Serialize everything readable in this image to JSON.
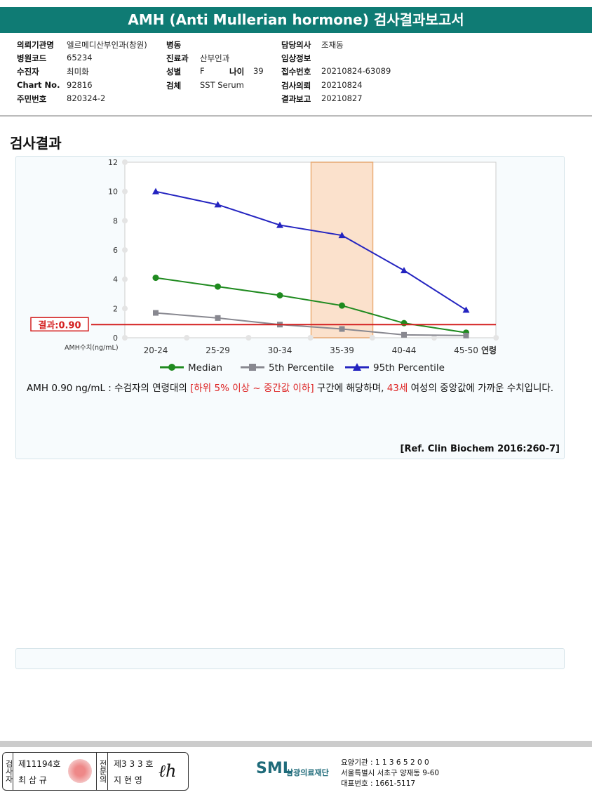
{
  "title": "AMH (Anti Mullerian hormone) 검사결과보고서",
  "info": [
    {
      "k": "의뢰기관명",
      "v": "엘르메디산부인과(창원)"
    },
    {
      "k": "병원코드",
      "v": "65234"
    },
    {
      "k": "수진자",
      "v": "최미화"
    },
    {
      "k": "Chart No.",
      "v": "92816"
    },
    {
      "k": "주민번호",
      "v": "820324-2"
    },
    {
      "k": "병동",
      "v": ""
    },
    {
      "k": "진료과",
      "v": "산부인과"
    },
    {
      "k": "성별",
      "v": "F"
    },
    {
      "k": "검체",
      "v": "SST Serum"
    },
    {
      "k": "나이",
      "v": "39"
    },
    {
      "k": "담당의사",
      "v": "조재동"
    },
    {
      "k": "임상정보",
      "v": ""
    },
    {
      "k": "접수번호",
      "v": "20210824-63089"
    },
    {
      "k": "검사의뢰",
      "v": "20210824"
    },
    {
      "k": "결과보고",
      "v": "20210827"
    }
  ],
  "section_title": "검사결과",
  "chart_data": {
    "type": "line",
    "categories": [
      "20-24",
      "25-29",
      "30-34",
      "35-39",
      "40-44",
      "45-50"
    ],
    "xlabel": "연령",
    "ylabel": "AMH수치(ng/mL)",
    "ylim": [
      0,
      12
    ],
    "yticks": [
      0,
      2,
      4,
      6,
      8,
      10,
      12
    ],
    "highlight_category": "35-39",
    "result_line": {
      "label": "결과:0.90",
      "value": 0.9,
      "color": "#d42020"
    },
    "series": [
      {
        "name": "Median",
        "color": "#1f8a1f",
        "marker": "circle",
        "values": [
          4.1,
          3.5,
          2.9,
          2.2,
          1.0,
          0.35
        ]
      },
      {
        "name": "5th Percentile",
        "color": "#888890",
        "marker": "square",
        "values": [
          1.7,
          1.35,
          0.9,
          0.6,
          0.2,
          0.15
        ]
      },
      {
        "name": "95th Percentile",
        "color": "#2424c0",
        "marker": "triangle",
        "values": [
          10.0,
          9.1,
          7.7,
          7.0,
          4.6,
          1.9
        ]
      }
    ]
  },
  "result_text": {
    "a": "AMH  0.90 ng/mL : 수검자의 연령대의 ",
    "b": "[하위 5% 이상 ~ 중간값 이하]",
    "c": " 구간에 해당하며, ",
    "d": "43세",
    "e": " 여성의 중앙값에 가까운 수치입니다."
  },
  "reference": "[Ref. Clin Biochem 2016:260-7]",
  "footer": {
    "inspector_label": "검사자",
    "inspector_no": "제11194호",
    "inspector_name": "최 삼 규",
    "doctor_label": "전문의",
    "doctor_no": "제3 3 3 호",
    "doctor_name": "지 현 영",
    "logo": "SML",
    "org": "삼광의료재단",
    "code": "요양기관 : 1 1 3 6 5 2 0 0",
    "address": "서울특별시 서초구 양재동 9-60",
    "phone": "대표번호 : 1661-5117"
  }
}
